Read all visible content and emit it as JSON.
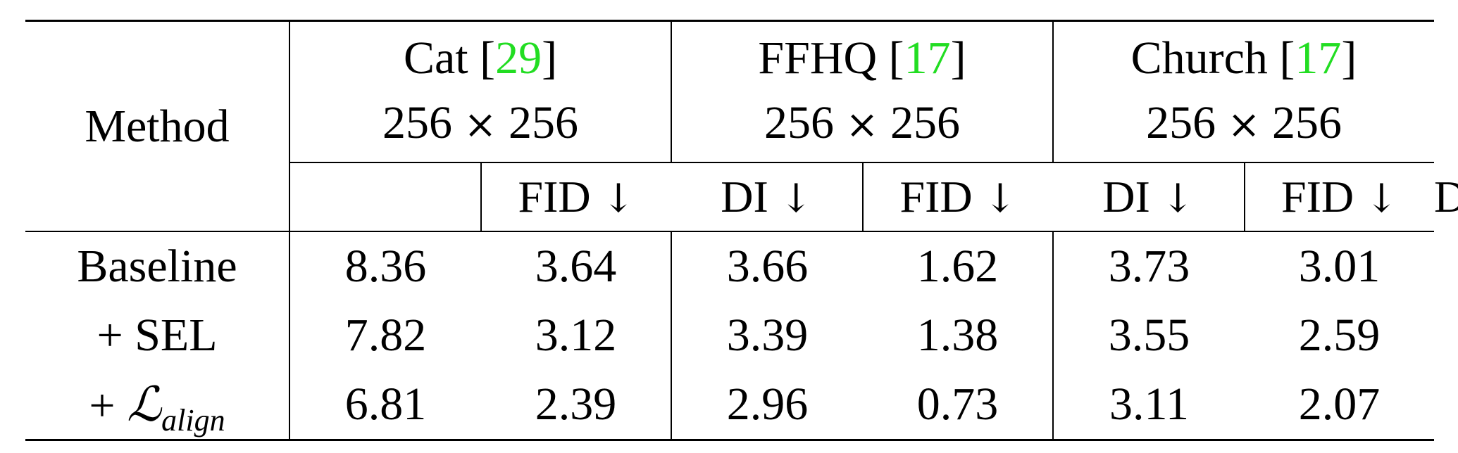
{
  "table": {
    "method_header": "Method",
    "datasets": [
      {
        "name": "Cat",
        "cite": "29",
        "res": "256 × 256"
      },
      {
        "name": "FFHQ",
        "cite": "17",
        "res": "256 × 256"
      },
      {
        "name": "Church",
        "cite": "17",
        "res": "256 × 256"
      }
    ],
    "metric_fid": "FID",
    "metric_di": "DI",
    "arrow": "↓",
    "rows": [
      {
        "method": "Baseline",
        "values": [
          "8.36",
          "3.64",
          "3.66",
          "1.62",
          "3.73",
          "3.01"
        ]
      },
      {
        "method": "+ SEL",
        "values": [
          "7.82",
          "3.12",
          "3.39",
          "1.38",
          "3.55",
          "2.59"
        ]
      },
      {
        "method_prefix": "+ ",
        "method_symbol": "ℒ",
        "method_sub": "align",
        "values": [
          "6.81",
          "2.39",
          "2.96",
          "0.73",
          "3.11",
          "2.07"
        ]
      }
    ]
  }
}
